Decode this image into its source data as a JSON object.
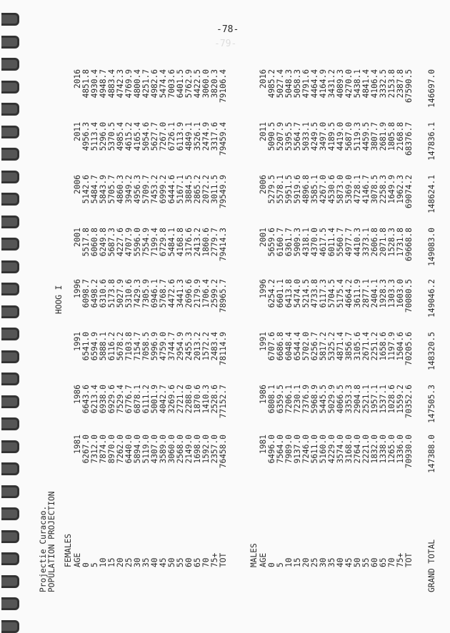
{
  "page_number": "-78-",
  "ghost_page_number": "-79-",
  "header": {
    "line1": "Projectie Curacao.",
    "line2": "POPULATION PROJECTION",
    "variant": "HOOG I"
  },
  "years": [
    "1981",
    "1986",
    "1991",
    "1996",
    "2001",
    "2006",
    "2011",
    "2016"
  ],
  "ages": [
    "0",
    "5",
    "10",
    "15",
    "20",
    "25",
    "30",
    "35",
    "40",
    "45",
    "50",
    "55",
    "60",
    "65",
    "70",
    "75+",
    "TOT"
  ],
  "females": {
    "label": "FEMALES",
    "age_header": "AGE",
    "columns": [
      [
        "6267.0",
        "7312.0",
        "7874.0",
        "8970.0",
        "7262.0",
        "6440.0",
        "5894.0",
        "5119.0",
        "4307.0",
        "3589.0",
        "3060.0",
        "2568.0",
        "2149.0",
        "1698.0",
        "1592.0",
        "2357.0",
        "76458.0"
      ],
      [
        "6643.6",
        "6213.4",
        "6938.0",
        "6929.6",
        "7529.4",
        "6776.7",
        "6878.1",
        "6111.2",
        "5001.9",
        "4042.7",
        "3269.6",
        "2721.2",
        "2288.0",
        "1870.6",
        "1410.3",
        "2528.6",
        "77152.7"
      ],
      [
        "6541.0",
        "6594.9",
        "5888.1",
        "6116.2",
        "5678.2",
        "7103.8",
        "7154.7",
        "7058.5",
        "5996.9",
        "4759.0",
        "3744.7",
        "2954.9",
        "2455.3",
        "2013.2",
        "1572.2",
        "2483.4",
        "78114.9"
      ],
      [
        "6098.7",
        "6498.2",
        "6310.6",
        "5173.8",
        "5027.9",
        "5310.6",
        "7429.3",
        "7305.9",
        "6946.1",
        "5768.7",
        "4472.6",
        "3441.3",
        "2696.6",
        "2179.9",
        "1706.4",
        "2599.2",
        "78965.7"
      ],
      [
        "5517.8",
        "6060.8",
        "6249.8",
        "5687.3",
        "4227.6",
        "4707.9",
        "5596.0",
        "7554.9",
        "7199.4",
        "6729.8",
        "5484.1",
        "4168.8",
        "3176.6",
        "2413.2",
        "1860.6",
        "2779.7",
        "79414.3"
      ],
      [
        "5142.6",
        "5484.7",
        "5843.9",
        "5705.7",
        "4860.3",
        "3949.2",
        "4956.3",
        "5709.7",
        "7453.2",
        "6999.2",
        "6444.6",
        "5167.1",
        "3884.5",
        "2865.2",
        "2072.2",
        "3011.5",
        "79549.9"
      ],
      [
        "4956.3",
        "5113.4",
        "5296.0",
        "5370.5",
        "4985.4",
        "4615.2",
        "4165.4",
        "5054.6",
        "5627.7",
        "7267.0",
        "6726.1",
        "6113.9",
        "4849.1",
        "3526.1",
        "2474.9",
        "3317.6",
        "79459.4"
      ],
      [
        "4851.8",
        "4930.4",
        "4948.7",
        "4883.4",
        "4742.3",
        "4769.9",
        "4800.4",
        "4251.7",
        "4982.6",
        "5474.4",
        "7003.6",
        "6401.5",
        "5762.9",
        "4422.5",
        "3060.0",
        "3820.3",
        "79106.4"
      ]
    ]
  },
  "males": {
    "label": "MALES",
    "age_header": "AGE",
    "columns": [
      [
        "6496.0",
        "7564.0",
        "7989.0",
        "9137.0",
        "7246.0",
        "5611.0",
        "5160.0",
        "4229.0",
        "3574.0",
        "3168.0",
        "2764.0",
        "2221.0",
        "1832.0",
        "1338.0",
        "1265.0",
        "1336.0",
        "70930.0"
      ],
      [
        "6808.1",
        "6359.5",
        "7206.1",
        "7230.1",
        "7376.9",
        "5968.9",
        "5445.5",
        "5029.9",
        "4066.5",
        "3353.3",
        "2904.8",
        "2521.1",
        "1957.1",
        "1537.1",
        "1028.6",
        "1559.2",
        "70352.6"
      ],
      [
        "6707.6",
        "6686.8",
        "6048.4",
        "6544.4",
        "5702.0",
        "6256.7",
        "5817.2",
        "5325.2",
        "4871.4",
        "3856.7",
        "3105.6",
        "2671.4",
        "2251.2",
        "1658.6",
        "1197.9",
        "1504.6",
        "70205.6"
      ],
      [
        "6254.2",
        "6601.1",
        "6413.8",
        "5474.0",
        "5214.5",
        "4733.8",
        "6117.3",
        "5704.5",
        "5175.4",
        "4664.2",
        "3611.9",
        "2877.1",
        "2404.1",
        "1928.3",
        "1303.3",
        "1603.0",
        "70080.5"
      ],
      [
        "5659.6",
        "6160.7",
        "6361.7",
        "5909.3",
        "4318.1",
        "4370.0",
        "4617.5",
        "6011.4",
        "5560.7",
        "4977.7",
        "4410.3",
        "3373.1",
        "2606.8",
        "2071.8",
        "1528.3",
        "1731.8",
        "69668.8"
      ],
      [
        "5279.5",
        "5578.1",
        "5951.5",
        "5919.6",
        "4896.8",
        "3585.1",
        "4267.0",
        "4530.6",
        "5873.0",
        "5369.0",
        "4728.1",
        "4146.7",
        "3078.5",
        "2258.3",
        "1649.9",
        "1962.3",
        "69074.2"
      ],
      [
        "5090.5",
        "5207.9",
        "5395.5",
        "5564.7",
        "5033.1",
        "4249.5",
        "3497.0",
        "4189.5",
        "4419.0",
        "5687.0",
        "5119.3",
        "4459.5",
        "3807.7",
        "2681.9",
        "1805.8",
        "2168.8",
        "68376.7"
      ],
      [
        "4985.2",
        "5027.4",
        "5048.3",
        "5058.3",
        "4791.6",
        "4464.4",
        "4164.9",
        "3431.2",
        "4089.3",
        "4270.0",
        "5438.1",
        "4841.4",
        "4106.4",
        "3332.5",
        "2153.8",
        "2387.8",
        "67590.5"
      ]
    ]
  },
  "grand_total": {
    "label": "GRAND TOTAL",
    "values": [
      "147388.0",
      "147505.3",
      "148320.5",
      "149046.2",
      "149083.0",
      "148624.1",
      "147836.1",
      "146697.0"
    ]
  }
}
